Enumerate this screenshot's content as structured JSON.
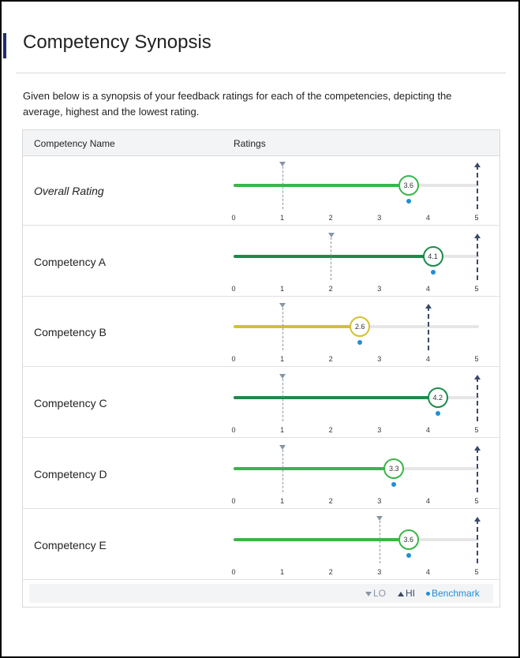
{
  "page": {
    "title": "Competency Synopsis",
    "description": "Given below is a synopsis of your feedback ratings for each of the competencies, depicting the average, highest and the lowest rating."
  },
  "table": {
    "headers": {
      "name": "Competency Name",
      "ratings": "Ratings"
    },
    "scale": {
      "min": 0,
      "max": 5,
      "ticks": [
        "0",
        "1",
        "2",
        "3",
        "4",
        "5"
      ]
    },
    "rows": [
      {
        "name": "Overall Rating",
        "italic": true,
        "average": 3.6,
        "average_label": "3.6",
        "lo": 1,
        "hi": 5,
        "benchmark": 3.6,
        "color": "#3bb54a"
      },
      {
        "name": "Competency A",
        "italic": false,
        "average": 4.1,
        "average_label": "4.1",
        "lo": 2,
        "hi": 5,
        "benchmark": 4.1,
        "color": "#1e8a4a"
      },
      {
        "name": "Competency B",
        "italic": false,
        "average": 2.6,
        "average_label": "2.6",
        "lo": 1,
        "hi": 4,
        "benchmark": 2.6,
        "color": "#d4c130"
      },
      {
        "name": "Competency C",
        "italic": false,
        "average": 4.2,
        "average_label": "4.2",
        "lo": 1,
        "hi": 5,
        "benchmark": 4.2,
        "color": "#1e8a4a"
      },
      {
        "name": "Competency D",
        "italic": false,
        "average": 3.3,
        "average_label": "3.3",
        "lo": 1,
        "hi": 5,
        "benchmark": 3.3,
        "color": "#3bb54a"
      },
      {
        "name": "Competency E",
        "italic": false,
        "average": 3.6,
        "average_label": "3.6",
        "lo": 3,
        "hi": 5,
        "benchmark": 3.6,
        "color": "#3bb54a"
      }
    ]
  },
  "legend": {
    "lo": "LO",
    "hi": "HI",
    "benchmark": "Benchmark",
    "lo_color": "#8795a8",
    "hi_color": "#3a4866",
    "benchmark_color": "#1e8fd6"
  }
}
